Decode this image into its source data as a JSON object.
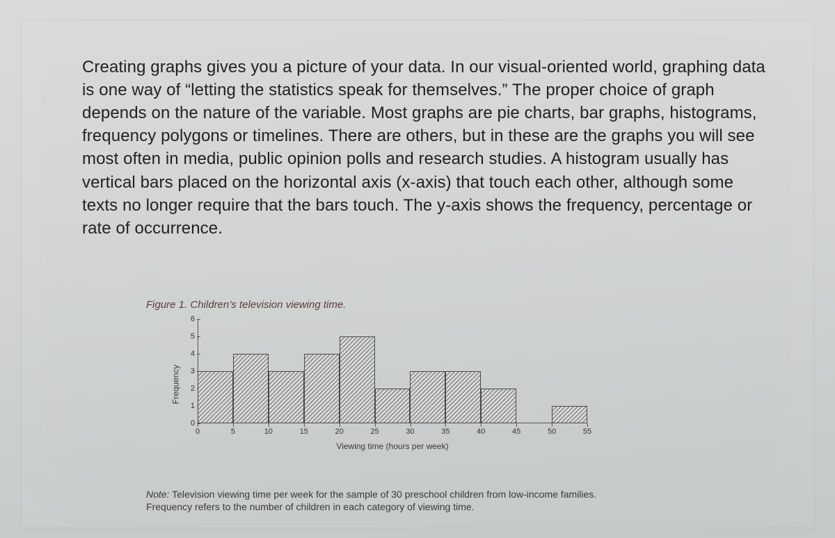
{
  "paragraph": "Creating graphs gives you a picture of your data. In our visual-oriented world, graphing data is one way of “letting the statistics speak for themselves.” The proper choice of graph depends on the nature of the variable. Most graphs are pie charts, bar graphs, histograms, frequency polygons or timelines. There are others, but in these are the graphs you will see most often in media, public opinion polls and research studies. A histogram usually has vertical bars placed on the horizontal axis (x-axis) that touch each other, although some texts no longer require that the bars touch. The y-axis shows the frequency, percentage or rate of occurrence.",
  "figure": {
    "title": "Figure 1. Children’s television viewing time.",
    "type": "histogram",
    "ylabel": "Frequency",
    "xlabel": "Viewing time (hours per week)",
    "note_lead": "Note:",
    "note_body": " Television viewing time per week for the sample of 30 preschool children from low-income families. Frequency refers to the number of children in each category of viewing time.",
    "ylim": [
      0,
      6
    ],
    "ytick_step": 1,
    "yticks": [
      0,
      1,
      2,
      3,
      4,
      5,
      6
    ],
    "xlim": [
      0,
      55
    ],
    "xtick_step": 5,
    "xticks": [
      0,
      5,
      10,
      15,
      20,
      25,
      30,
      35,
      40,
      45,
      50,
      55
    ],
    "bin_width": 5,
    "bars": [
      {
        "x0": 0,
        "x1": 5,
        "freq": 3
      },
      {
        "x0": 5,
        "x1": 10,
        "freq": 4
      },
      {
        "x0": 10,
        "x1": 15,
        "freq": 3
      },
      {
        "x0": 15,
        "x1": 20,
        "freq": 4
      },
      {
        "x0": 20,
        "x1": 25,
        "freq": 5
      },
      {
        "x0": 25,
        "x1": 30,
        "freq": 2
      },
      {
        "x0": 30,
        "x1": 35,
        "freq": 3
      },
      {
        "x0": 35,
        "x1": 40,
        "freq": 3
      },
      {
        "x0": 40,
        "x1": 45,
        "freq": 2
      },
      {
        "x0": 50,
        "x1": 55,
        "freq": 1
      }
    ],
    "bar_fill": "hatched",
    "bar_border_color": "#4a4a4a",
    "axis_color": "#555555",
    "background": "transparent",
    "title_color": "#5b3d3d",
    "title_fontsize": 15,
    "label_fontsize": 12,
    "tick_fontsize": 11
  }
}
